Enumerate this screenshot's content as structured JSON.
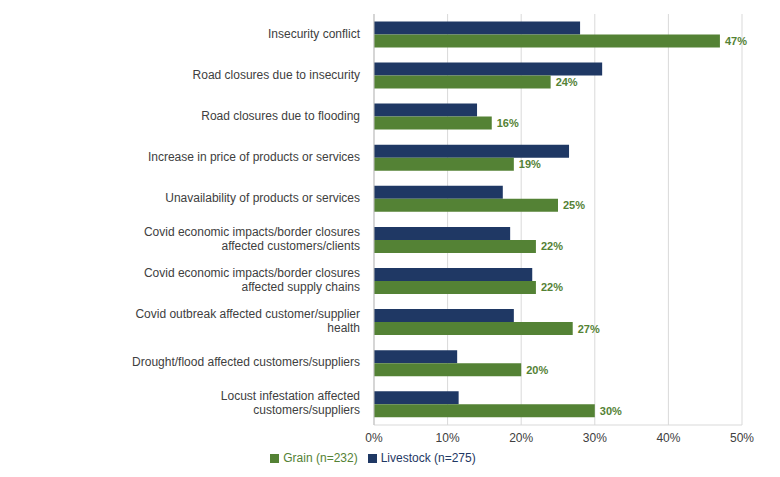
{
  "chart_data": {
    "type": "bar",
    "orientation": "horizontal",
    "grid": true,
    "legend": "bottom",
    "categories": [
      "Insecurity conflict",
      "Road closures due to insecurity",
      "Road closures due to flooding",
      "Increase in price of products or services",
      "Unavailability of products or services",
      "Covid economic impacts/border closures affected customers/clients",
      "Covid economic impacts/border closures affected supply chains",
      "Covid outbreak affected customer/supplier health",
      "Drought/flood affected customers/suppliers",
      "Locust infestation affected customers/suppliers"
    ],
    "series": [
      {
        "name": "Livestock (n=275)",
        "color": "#1f3864",
        "values": [
          28,
          31,
          14,
          26.5,
          17.5,
          18.5,
          21.5,
          19,
          11.3,
          11.5
        ]
      },
      {
        "name": "Grain (n=232)",
        "color": "#548235",
        "data_labels": true,
        "values": [
          47,
          24,
          16,
          19,
          25,
          22,
          22,
          27,
          20,
          30
        ],
        "value_labels": [
          "47%",
          "24%",
          "16%",
          "19%",
          "25%",
          "22%",
          "22%",
          "27%",
          "20%",
          "30%"
        ]
      }
    ],
    "xlim": [
      0,
      50
    ],
    "xticks": [
      {
        "value": 0,
        "label": "0%"
      },
      {
        "value": 10,
        "label": "10%"
      },
      {
        "value": 20,
        "label": "20%"
      },
      {
        "value": 30,
        "label": "30%"
      },
      {
        "value": 40,
        "label": "40%"
      },
      {
        "value": 50,
        "label": "50%"
      }
    ]
  }
}
